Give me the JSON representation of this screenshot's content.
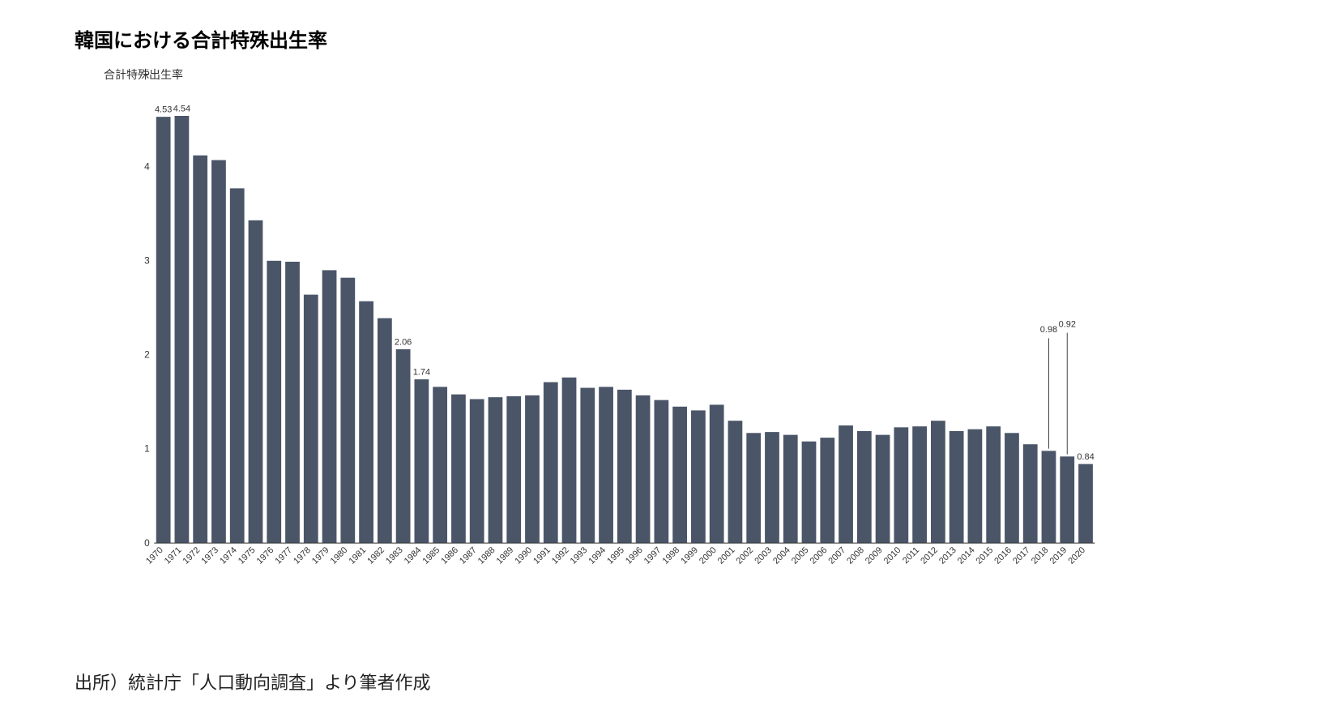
{
  "title": "韓国における合計特殊出生率",
  "legend_label": "合計特殊出生率",
  "source_note": "出所）統計庁「人口動向調査」より筆者作成",
  "chart": {
    "type": "bar",
    "bar_color": "#4a5568",
    "background_color": "#ffffff",
    "grid_color": "#e0e0e0",
    "axis_color": "#333333",
    "title_fontsize": 24,
    "label_fontsize": 12,
    "ylim": [
      0,
      5
    ],
    "ytick_step": 1,
    "bar_width": 0.78,
    "categories": [
      "1970",
      "1971",
      "1972",
      "1973",
      "1974",
      "1975",
      "1976",
      "1977",
      "1978",
      "1979",
      "1980",
      "1981",
      "1982",
      "1983",
      "1984",
      "1985",
      "1986",
      "1987",
      "1988",
      "1989",
      "1990",
      "1991",
      "1992",
      "1993",
      "1994",
      "1995",
      "1996",
      "1997",
      "1998",
      "1999",
      "2000",
      "2001",
      "2002",
      "2003",
      "2004",
      "2005",
      "2006",
      "2007",
      "2008",
      "2009",
      "2010",
      "2011",
      "2012",
      "2013",
      "2014",
      "2015",
      "2016",
      "2017",
      "2018",
      "2019",
      "2020"
    ],
    "values": [
      4.53,
      4.54,
      4.12,
      4.07,
      3.77,
      3.43,
      3.0,
      2.99,
      2.64,
      2.9,
      2.82,
      2.57,
      2.39,
      2.06,
      1.74,
      1.66,
      1.58,
      1.53,
      1.55,
      1.56,
      1.57,
      1.71,
      1.76,
      1.65,
      1.66,
      1.63,
      1.57,
      1.52,
      1.45,
      1.41,
      1.47,
      1.3,
      1.17,
      1.18,
      1.15,
      1.08,
      1.12,
      1.25,
      1.19,
      1.15,
      1.23,
      1.24,
      1.3,
      1.19,
      1.21,
      1.24,
      1.17,
      1.05,
      0.98,
      0.92,
      0.84
    ],
    "value_labels": [
      {
        "index": 0,
        "text": "4.53"
      },
      {
        "index": 1,
        "text": "4.54"
      },
      {
        "index": 13,
        "text": "2.06"
      },
      {
        "index": 14,
        "text": "1.74"
      },
      {
        "index": 48,
        "text": "0.98",
        "callout": true,
        "dy": 160
      },
      {
        "index": 49,
        "text": "0.92",
        "callout": true,
        "dy": 175
      },
      {
        "index": 50,
        "text": "0.84"
      }
    ]
  }
}
